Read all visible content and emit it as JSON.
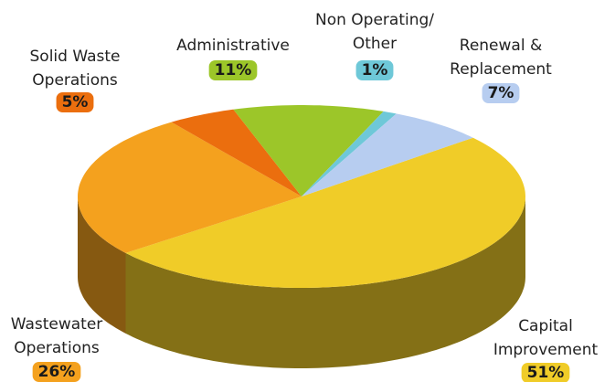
{
  "chart_data": {
    "type": "pie3d",
    "categories": [
      "Capital\nImprovement",
      "Wastewater\nOperations",
      "Solid Waste\nOperations",
      "Administrative",
      "Non Operating/\nOther",
      "Renewal &\nReplacement"
    ],
    "values": [
      51,
      26,
      5,
      11,
      1,
      7
    ],
    "value_labels": [
      "51%",
      "26%",
      "5%",
      "11%",
      "1%",
      "7%"
    ],
    "colors": [
      "#f0cc28",
      "#f4a11e",
      "#eb6e0e",
      "#9cc629",
      "#6ec8d8",
      "#b7cdf0"
    ]
  }
}
